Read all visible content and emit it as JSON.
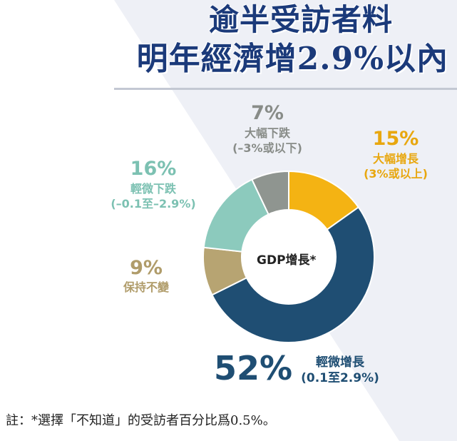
{
  "headline": {
    "line1": "逾半受訪者料",
    "line2": "明年經濟增2.9%以內"
  },
  "center_label": "GDP增長*",
  "footnote": "註：*選擇「不知道」的受訪者百分比爲0.5%。",
  "colors": {
    "title": "#1b3a7a",
    "background_band": "#eef0f6"
  },
  "chart_data": {
    "type": "pie",
    "donut": true,
    "title": "逾半受訪者料明年經濟增2.9%以內",
    "slices": [
      {
        "label": "大幅增長",
        "sublabel": "(3%或以上)",
        "value": 15,
        "pct_text": "15%",
        "color": "#f4b313",
        "text_color": "#e8a70f"
      },
      {
        "label": "輕微增長",
        "sublabel": "(0.1至2.9%)",
        "value": 52,
        "pct_text": "52%",
        "color": "#1f4e73",
        "text_color": "#1f4e73"
      },
      {
        "label": "保持不變",
        "sublabel": "",
        "value": 9,
        "pct_text": "9%",
        "color": "#b7a472",
        "text_color": "#b09c6a"
      },
      {
        "label": "輕微下跌",
        "sublabel": "(–0.1至–2.9%)",
        "value": 16,
        "pct_text": "16%",
        "color": "#8ccabd",
        "text_color": "#7cc1b2"
      },
      {
        "label": "大幅下跌",
        "sublabel": "(–3%或以下)",
        "value": 7,
        "pct_text": "7%",
        "color": "#8f9590",
        "text_color": "#888c88"
      }
    ]
  }
}
